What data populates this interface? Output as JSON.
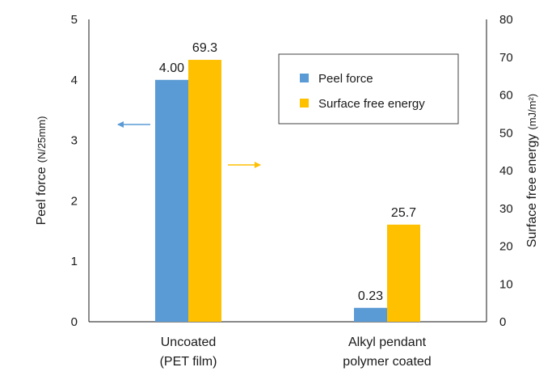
{
  "chart_data": {
    "type": "bar",
    "categories": [
      {
        "line1": "Uncoated",
        "line2": "(PET film)"
      },
      {
        "line1": "Alkyl pendant",
        "line2": "polymer coated"
      }
    ],
    "series": [
      {
        "name": "Peel force",
        "axis": "left",
        "color": "#5b9bd5",
        "values": [
          4.0,
          0.23
        ],
        "labels": [
          "4.00",
          "0.23"
        ]
      },
      {
        "name": "Surface free energy",
        "axis": "right",
        "color": "#ffc000",
        "values": [
          69.3,
          25.7
        ],
        "labels": [
          "69.3",
          "25.7"
        ]
      }
    ],
    "y_left": {
      "title": "Peel force",
      "unit": "(N/25mm)",
      "lim": [
        0,
        5
      ],
      "ticks": [
        "0",
        "1",
        "2",
        "3",
        "4",
        "5"
      ]
    },
    "y_right": {
      "title": "Surface free energy",
      "unit": "(mJ/m²)",
      "lim": [
        0,
        80
      ],
      "ticks": [
        "0",
        "10",
        "20",
        "30",
        "40",
        "50",
        "60",
        "70",
        "80"
      ]
    },
    "legend": {
      "placement": "top-right"
    },
    "annotations": [
      {
        "kind": "arrow",
        "direction": "left",
        "color": "#5b9bd5",
        "meaning": "peel force uses left axis"
      },
      {
        "kind": "arrow",
        "direction": "right",
        "color": "#ffc000",
        "meaning": "surface free energy uses right axis"
      }
    ],
    "grid": false
  }
}
